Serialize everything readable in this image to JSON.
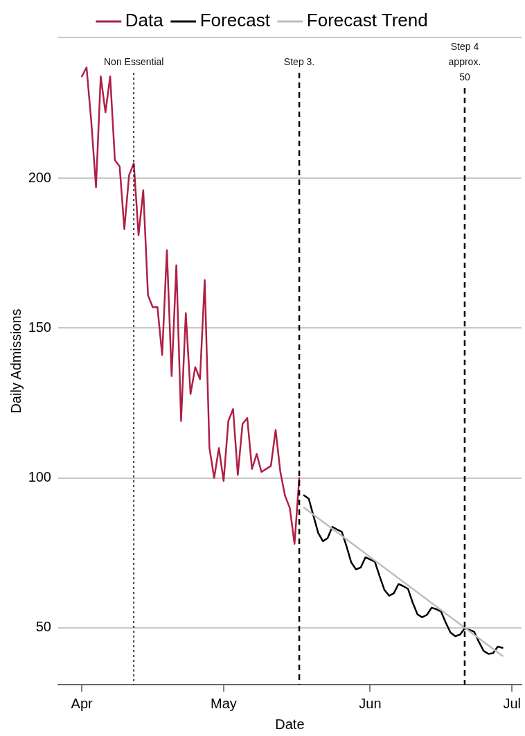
{
  "chart_data": {
    "type": "line",
    "xlabel": "Date",
    "ylabel": "Daily Admissions",
    "xlim": [
      "--03-27",
      "--07-03"
    ],
    "xticks": [
      {
        "value": "--04-01",
        "label": "Apr"
      },
      {
        "value": "--05-01",
        "label": "May"
      },
      {
        "value": "--06-01",
        "label": "Jun"
      },
      {
        "value": "--07-01",
        "label": "Jul"
      }
    ],
    "ylim": [
      31,
      247
    ],
    "yticks": [
      50,
      100,
      150,
      200,
      {
        "value": 247,
        "label": null
      }
    ],
    "grid": "y",
    "legend": "top",
    "marker": "none",
    "series": [
      {
        "name": "Data",
        "color": "#b01f45",
        "x": [
          "--04-01",
          "--04-02",
          "--04-03",
          "--04-04",
          "--04-05",
          "--04-06",
          "--04-07",
          "--04-08",
          "--04-09",
          "--04-10",
          "--04-11",
          "--04-12",
          "--04-13",
          "--04-14",
          "--04-15",
          "--04-16",
          "--04-17",
          "--04-18",
          "--04-19",
          "--04-20",
          "--04-21",
          "--04-22",
          "--04-23",
          "--04-24",
          "--04-25",
          "--04-26",
          "--04-27",
          "--04-28",
          "--04-29",
          "--04-30",
          "--05-01",
          "--05-02",
          "--05-03",
          "--05-04",
          "--05-05",
          "--05-06",
          "--05-07",
          "--05-08",
          "--05-09",
          "--05-10",
          "--05-11",
          "--05-12",
          "--05-13",
          "--05-14",
          "--05-15",
          "--05-16",
          "--05-17"
        ],
        "values": [
          234,
          237,
          219,
          197,
          234,
          222,
          234,
          206,
          204,
          183,
          201,
          205,
          181,
          196,
          161,
          157,
          157,
          141,
          176,
          134,
          171,
          119,
          155,
          128,
          137,
          133,
          166,
          110,
          100,
          110,
          99,
          119,
          123,
          101,
          118,
          120,
          103,
          108,
          102,
          103,
          104,
          116,
          102,
          94,
          90,
          78,
          100
        ]
      },
      {
        "name": "Forecast",
        "color": "#000000",
        "x": [
          "--05-18",
          "--05-19",
          "--05-20",
          "--05-21",
          "--05-22",
          "--05-23",
          "--05-24",
          "--05-25",
          "--05-26",
          "--05-27",
          "--05-28",
          "--05-29",
          "--05-30",
          "--05-31",
          "--06-01",
          "--06-02",
          "--06-03",
          "--06-04",
          "--06-05",
          "--06-06",
          "--06-07",
          "--06-08",
          "--06-09",
          "--06-10",
          "--06-11",
          "--06-12",
          "--06-13",
          "--06-14",
          "--06-15",
          "--06-16",
          "--06-17",
          "--06-18",
          "--06-19",
          "--06-20",
          "--06-21",
          "--06-22",
          "--06-23",
          "--06-24",
          "--06-25",
          "--06-26",
          "--06-27",
          "--06-28",
          "--06-29"
        ],
        "values": [
          94.2,
          93.1,
          87.4,
          81.7,
          78.9,
          79.9,
          83.7,
          82.8,
          82.0,
          77.2,
          71.8,
          69.5,
          70.1,
          73.5,
          72.8,
          72.0,
          67.2,
          62.7,
          60.7,
          61.5,
          64.6,
          63.9,
          63.0,
          58.4,
          54.5,
          53.5,
          54.3,
          56.7,
          56.2,
          55.4,
          51.7,
          48.4,
          47.2,
          47.7,
          49.8,
          49.3,
          48.7,
          45.3,
          42.3,
          41.3,
          41.5,
          43.7,
          43.3
        ]
      },
      {
        "name": "Forecast Trend",
        "color": "#bdbdbd",
        "x": [
          "--05-18",
          "--06-29"
        ],
        "values": [
          90.1,
          40.6
        ]
      }
    ],
    "ref_lines": [
      {
        "axis": "x",
        "value": "--04-12",
        "label": "Non Essential",
        "line_style": "dotted"
      },
      {
        "axis": "x",
        "value": "--05-17",
        "label": "Step 3.",
        "line_style": "dashed"
      },
      {
        "axis": "x",
        "value": "--06-21",
        "label": "Step 4\napprox.\n50",
        "line_style": "dashed"
      }
    ]
  }
}
